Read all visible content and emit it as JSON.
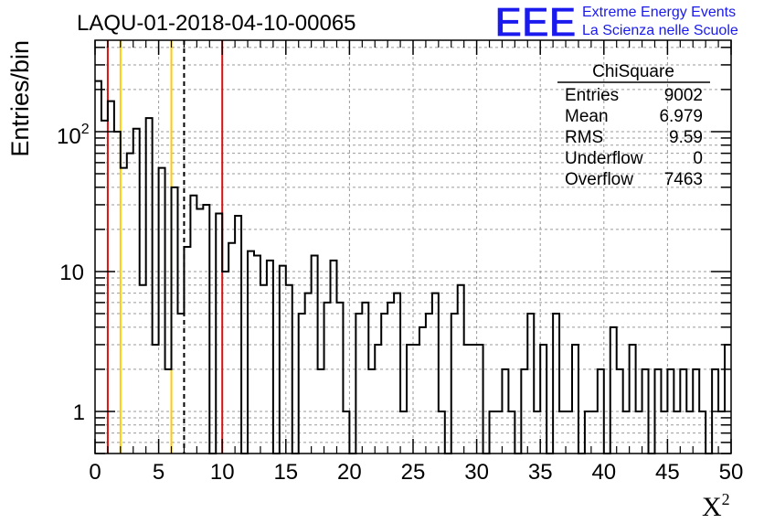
{
  "chart_data": {
    "type": "histogram",
    "title": "LAQU-01-2018-04-10-00065",
    "xlabel": "X",
    "xlabel_sup": "2",
    "ylabel": "Entries/bin",
    "xlim": [
      0,
      50
    ],
    "ylim": [
      0.5,
      450
    ],
    "yscale": "log",
    "grid": true,
    "bin_width": 0.5,
    "bin_values": [
      230,
      120,
      165,
      100,
      55,
      70,
      105,
      8,
      125,
      3,
      55,
      2,
      40,
      5,
      15,
      35,
      28,
      30,
      0.3,
      26,
      10,
      16,
      25,
      0.3,
      14,
      13,
      8,
      12,
      0.3,
      11,
      8,
      0.3,
      5,
      7,
      13,
      2,
      6,
      12,
      6,
      1,
      0.3,
      5,
      6,
      2,
      3,
      5,
      6,
      7,
      1,
      3,
      3,
      4,
      5,
      7,
      1,
      0.3,
      5,
      8,
      3,
      3,
      3,
      0.3,
      1,
      1,
      2,
      1,
      0.3,
      2,
      5,
      1,
      3,
      0.3,
      5,
      1,
      1,
      3,
      0.3,
      1,
      1,
      2,
      0.3,
      4,
      2,
      1,
      3,
      1,
      2,
      0.3,
      2,
      1,
      2,
      1,
      2,
      1,
      2,
      1,
      0.3,
      2,
      1,
      3
    ],
    "vertical_lines": [
      {
        "x": 1,
        "color": "#dd1111",
        "style": "solid"
      },
      {
        "x": 2,
        "color": "#ffcc00",
        "style": "solid"
      },
      {
        "x": 6,
        "color": "#ffcc00",
        "style": "solid"
      },
      {
        "x": 7,
        "color": "#000000",
        "style": "dashed"
      },
      {
        "x": 10,
        "color": "#dd1111",
        "style": "solid"
      }
    ],
    "x_ticks": [
      "0",
      "5",
      "10",
      "15",
      "20",
      "25",
      "30",
      "35",
      "40",
      "45",
      "50"
    ],
    "y_tick_labels": [
      {
        "base": "1",
        "exp": ""
      },
      {
        "base": "10",
        "exp": ""
      },
      {
        "base": "10",
        "exp": "2"
      }
    ],
    "stats_box": {
      "title": "ChiSquare",
      "rows": [
        {
          "label": "Entries",
          "value": "9002"
        },
        {
          "label": "Mean",
          "value": "6.979"
        },
        {
          "label": "RMS",
          "value": "9.59"
        },
        {
          "label": "Underflow",
          "value": "0"
        },
        {
          "label": "Overflow",
          "value": "7463"
        }
      ]
    },
    "logo": {
      "text": "EEE",
      "line1": "Extreme Energy Events",
      "line2": "La Scienza nelle Scuole",
      "color": "#1a1aee"
    }
  }
}
